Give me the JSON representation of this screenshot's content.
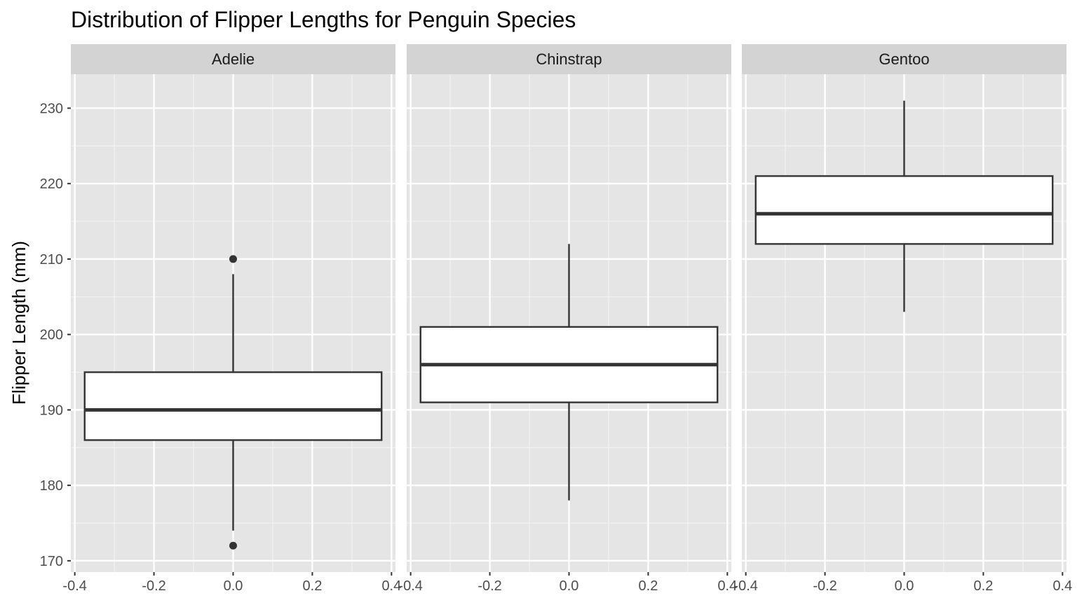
{
  "chart_data": {
    "type": "boxplot",
    "title": "Distribution of Flipper Lengths for Penguin Species",
    "xlabel": "",
    "ylabel": "Flipper Length (mm)",
    "ylim": [
      168.5,
      234.5
    ],
    "xlim": [
      -0.41,
      0.41
    ],
    "yticks": [
      170,
      180,
      190,
      200,
      210,
      220,
      230
    ],
    "xticks": [
      -0.4,
      -0.2,
      0.0,
      0.2,
      0.4
    ],
    "xtick_labels": [
      "-0.4",
      "-0.2",
      "0.0",
      "0.2",
      "0.4"
    ],
    "grid": true,
    "panel_background": "#e5e5e5",
    "strip_background": "#d3d3d3",
    "box_fill": "#ffffff",
    "box_line": "#333333",
    "facets": [
      {
        "label": "Adelie",
        "min": 174,
        "q1": 186,
        "median": 190,
        "q3": 195,
        "max": 208,
        "outliers": [
          210,
          172
        ]
      },
      {
        "label": "Chinstrap",
        "min": 178,
        "q1": 191,
        "median": 196,
        "q3": 201,
        "max": 212,
        "outliers": []
      },
      {
        "label": "Gentoo",
        "min": 203,
        "q1": 212,
        "median": 216,
        "q3": 221,
        "max": 231,
        "outliers": []
      }
    ]
  }
}
